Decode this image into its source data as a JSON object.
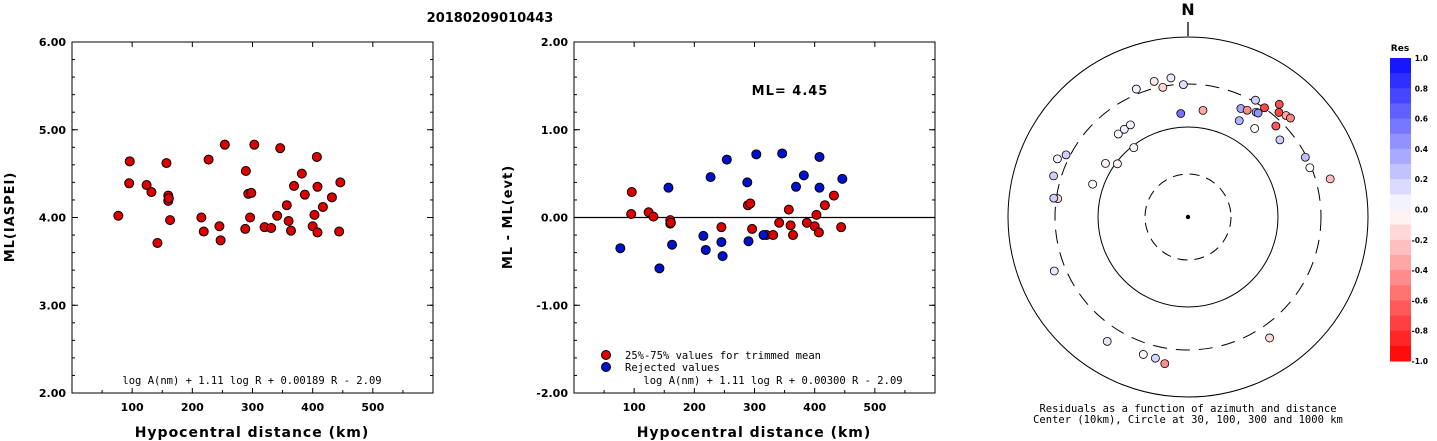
{
  "title": "20180209010443",
  "chart_data": [
    {
      "type": "scatter",
      "id": "left",
      "xlabel": "Hypocentral distance (km)",
      "ylabel": "ML(IASPEI)",
      "xlim": [
        0,
        600
      ],
      "ylim": [
        2.0,
        6.0
      ],
      "xticks": [
        100,
        200,
        300,
        400,
        500
      ],
      "yticks": [
        "2.00",
        "3.00",
        "4.00",
        "5.00",
        "6.00"
      ],
      "formula": "log A(nm) + 1.11 log R + 0.00189 R - 2.09",
      "series": [
        {
          "color": "#dd0000",
          "points": [
            [
              77,
              4.02
            ],
            [
              95,
              4.39
            ],
            [
              96,
              4.64
            ],
            [
              124,
              4.37
            ],
            [
              132,
              4.29
            ],
            [
              142,
              3.71
            ],
            [
              157,
              4.62
            ],
            [
              160,
              4.25
            ],
            [
              160,
              4.19
            ],
            [
              161,
              4.22
            ],
            [
              163,
              3.97
            ],
            [
              215,
              4.0
            ],
            [
              219,
              3.84
            ],
            [
              227,
              4.66
            ],
            [
              245,
              3.9
            ],
            [
              247,
              3.74
            ],
            [
              254,
              4.83
            ],
            [
              288,
              3.87
            ],
            [
              289,
              4.53
            ],
            [
              293,
              4.27
            ],
            [
              296,
              4.0
            ],
            [
              298,
              4.28
            ],
            [
              303,
              4.83
            ],
            [
              320,
              3.89
            ],
            [
              331,
              3.88
            ],
            [
              341,
              4.02
            ],
            [
              346,
              4.79
            ],
            [
              357,
              4.14
            ],
            [
              360,
              3.96
            ],
            [
              364,
              3.85
            ],
            [
              369,
              4.36
            ],
            [
              382,
              4.5
            ],
            [
              387,
              4.26
            ],
            [
              400,
              3.9
            ],
            [
              403,
              4.03
            ],
            [
              407,
              4.69
            ],
            [
              408,
              4.35
            ],
            [
              408,
              3.83
            ],
            [
              417,
              4.12
            ],
            [
              432,
              4.23
            ],
            [
              444,
              3.84
            ],
            [
              446,
              4.4
            ]
          ]
        }
      ]
    },
    {
      "type": "scatter",
      "id": "middle",
      "xlabel": "Hypocentral distance (km)",
      "ylabel": "ML - ML(evt)",
      "xlim": [
        0,
        600
      ],
      "ylim": [
        -2.0,
        2.0
      ],
      "xticks": [
        100,
        200,
        300,
        400,
        500
      ],
      "yticks": [
        "-2.00",
        "-1.00",
        "0.00",
        "1.00",
        "2.00"
      ],
      "annotation": "ML= 4.45",
      "formula": "log A(nm) + 1.11 log R + 0.00300 R - 2.09",
      "zero_line": 0,
      "legend": [
        {
          "label": "25%-75% values for trimmed mean",
          "color": "#dd0000"
        },
        {
          "label": "Rejected values",
          "color": "#0011cc"
        }
      ],
      "series": [
        {
          "color": "#dd0000",
          "points": [
            [
              95,
              0.04
            ],
            [
              96,
              0.29
            ],
            [
              124,
              0.06
            ],
            [
              132,
              0.01
            ],
            [
              160,
              -0.03
            ],
            [
              160,
              -0.07
            ],
            [
              161,
              -0.06
            ],
            [
              245,
              -0.11
            ],
            [
              289,
              0.14
            ],
            [
              293,
              0.16
            ],
            [
              296,
              -0.13
            ],
            [
              320,
              -0.2
            ],
            [
              331,
              -0.2
            ],
            [
              341,
              -0.06
            ],
            [
              357,
              0.09
            ],
            [
              360,
              -0.09
            ],
            [
              364,
              -0.2
            ],
            [
              387,
              -0.06
            ],
            [
              400,
              -0.1
            ],
            [
              403,
              0.03
            ],
            [
              407,
              -0.17
            ],
            [
              417,
              0.14
            ],
            [
              432,
              0.25
            ],
            [
              444,
              -0.11
            ]
          ]
        },
        {
          "color": "#0011cc",
          "points": [
            [
              77,
              -0.35
            ],
            [
              142,
              -0.58
            ],
            [
              157,
              0.34
            ],
            [
              163,
              -0.31
            ],
            [
              215,
              -0.21
            ],
            [
              219,
              -0.37
            ],
            [
              227,
              0.46
            ],
            [
              245,
              -0.28
            ],
            [
              247,
              -0.44
            ],
            [
              254,
              0.66
            ],
            [
              288,
              0.4
            ],
            [
              290,
              -0.27
            ],
            [
              303,
              0.72
            ],
            [
              315,
              -0.2
            ],
            [
              346,
              0.73
            ],
            [
              369,
              0.35
            ],
            [
              382,
              0.48
            ],
            [
              408,
              0.69
            ],
            [
              408,
              0.34
            ],
            [
              446,
              0.44
            ]
          ]
        }
      ]
    },
    {
      "type": "polar",
      "id": "right",
      "north_label": "N",
      "rings_km": [
        10,
        30,
        100,
        300,
        1000
      ],
      "caption_line1": "Residuals as a function of azimuth and distance",
      "caption_line2": "Center (10km), Circle at 30, 100, 300 and 1000 km",
      "colorbar_title": "Res",
      "colorbar_ticks": [
        "1.0",
        "0.8",
        "0.6",
        "0.4",
        "0.2",
        "0.0",
        "-0.2",
        "-0.4",
        "-0.6",
        "-0.8",
        "-1.0"
      ],
      "stations": [
        {
          "az": -38,
          "dist": 95,
          "res": 0.02
        },
        {
          "az": -53,
          "dist": 96,
          "res": -0.04
        },
        {
          "az": -57,
          "dist": 124,
          "res": -0.06
        },
        {
          "az": -71,
          "dist": 132,
          "res": -0.01
        },
        {
          "az": -40,
          "dist": 160,
          "res": 0.03
        },
        {
          "az": -36,
          "dist": 160,
          "res": 0.07
        },
        {
          "az": -32,
          "dist": 161,
          "res": 0.06
        },
        {
          "az": -82,
          "dist": 289,
          "res": -0.14
        },
        {
          "az": -11,
          "dist": 293,
          "res": -0.16
        },
        {
          "az": -2,
          "dist": 296,
          "res": 0.13
        },
        {
          "az": -82,
          "dist": 320,
          "res": 0.2
        },
        {
          "az": -63,
          "dist": 331,
          "res": 0.2
        },
        {
          "az": -22,
          "dist": 341,
          "res": 0.06
        },
        {
          "az": -14,
          "dist": 357,
          "res": -0.09
        },
        {
          "az": -7,
          "dist": 360,
          "res": 0.09
        },
        {
          "az": -73,
          "dist": 364,
          "res": 0.2
        },
        {
          "az": -66,
          "dist": 387,
          "res": 0.06
        },
        {
          "az": -112,
          "dist": 400,
          "res": 0.1
        },
        {
          "az": -162,
          "dist": 403,
          "res": -0.03
        },
        {
          "az": -167,
          "dist": 407,
          "res": 0.17
        },
        {
          "az": 146,
          "dist": 417,
          "res": -0.14
        },
        {
          "az": 75,
          "dist": 432,
          "res": -0.25
        },
        {
          "az": -147,
          "dist": 444,
          "res": 0.11
        },
        {
          "az": 37,
          "dist": 170,
          "res": 0.02
        },
        {
          "az": -4,
          "dist": 142,
          "res": 0.58
        },
        {
          "az": 8,
          "dist": 157,
          "res": -0.34
        },
        {
          "az": 28,
          "dist": 163,
          "res": 0.31
        },
        {
          "az": 50,
          "dist": 215,
          "res": 0.21
        },
        {
          "az": 26,
          "dist": 219,
          "res": 0.37
        },
        {
          "az": 29,
          "dist": 227,
          "res": -0.46
        },
        {
          "az": 33,
          "dist": 245,
          "res": 0.28
        },
        {
          "az": 34,
          "dist": 247,
          "res": 0.44
        },
        {
          "az": 44,
          "dist": 254,
          "res": -0.66
        },
        {
          "az": 68,
          "dist": 288,
          "res": 0.0
        },
        {
          "az": 63,
          "dist": 290,
          "res": 0.27
        },
        {
          "az": 35,
          "dist": 303,
          "res": -0.72
        },
        {
          "az": 30,
          "dist": 315,
          "res": 0.2
        },
        {
          "az": 41,
          "dist": 346,
          "res": -0.73
        },
        {
          "az": 44,
          "dist": 369,
          "res": -0.35
        },
        {
          "az": 46,
          "dist": 382,
          "res": -0.48
        },
        {
          "az": 39,
          "dist": 408,
          "res": -0.69
        },
        {
          "az": -171,
          "dist": 446,
          "res": -0.44
        }
      ]
    }
  ]
}
